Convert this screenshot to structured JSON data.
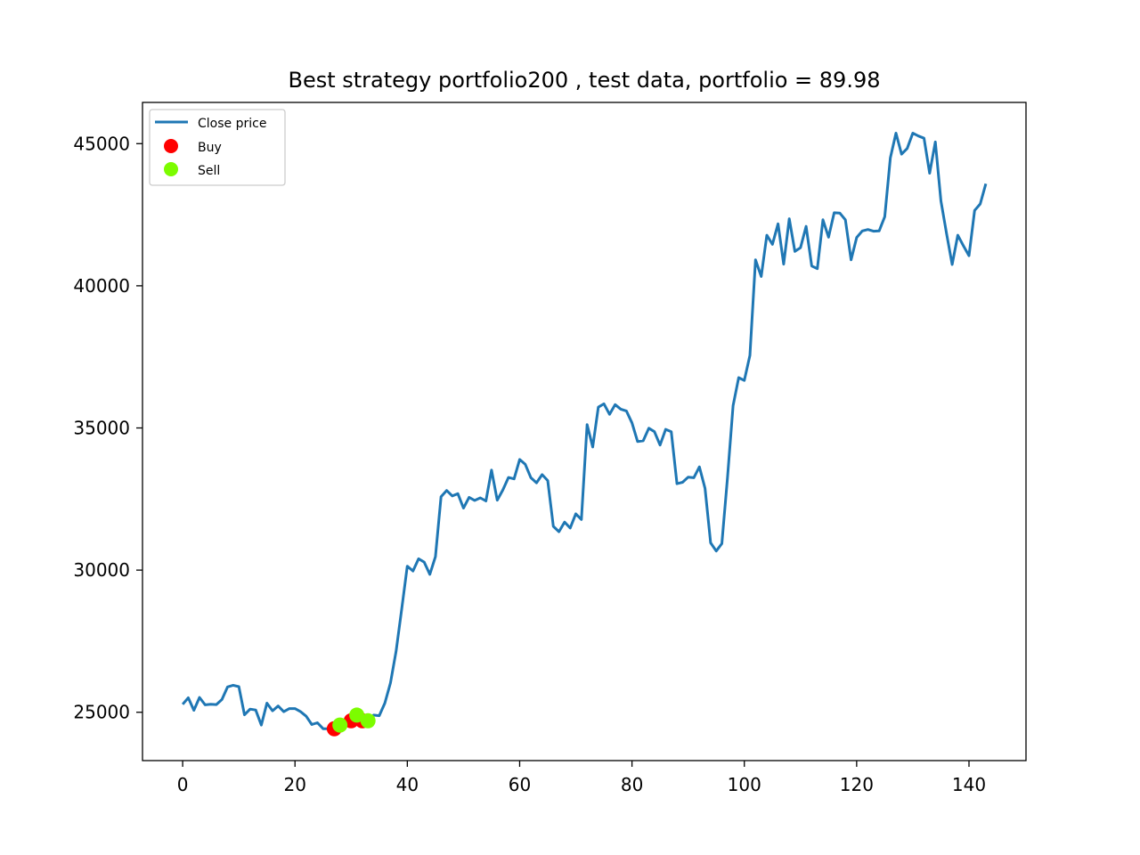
{
  "chart_data": {
    "type": "line",
    "title": "Best strategy portfolio200 , test data, portfolio = 89.98",
    "xlabel": "",
    "ylabel": "",
    "xlim": [
      -7.15,
      150.15
    ],
    "ylim": [
      23300,
      46450
    ],
    "x_ticks": [
      0,
      20,
      40,
      60,
      80,
      100,
      120,
      140
    ],
    "y_ticks": [
      25000,
      30000,
      35000,
      40000,
      45000
    ],
    "grid": false,
    "legend_position": "upper left",
    "series": [
      {
        "name": "Close price",
        "kind": "line",
        "color": "#1f77b4",
        "y": [
          25280,
          25510,
          25070,
          25520,
          25260,
          25280,
          25270,
          25450,
          25890,
          25950,
          25900,
          24910,
          25110,
          25080,
          24550,
          25320,
          25050,
          25220,
          25020,
          25130,
          25130,
          25020,
          24860,
          24570,
          24630,
          24420,
          24420,
          24380,
          24550,
          24700,
          24700,
          24870,
          24700,
          24700,
          24900,
          24880,
          25320,
          26030,
          27140,
          28620,
          30140,
          29970,
          30400,
          30280,
          29850,
          30470,
          32580,
          32800,
          32610,
          32690,
          32180,
          32560,
          32450,
          32540,
          32430,
          33520,
          32460,
          32820,
          33260,
          33210,
          33890,
          33720,
          33250,
          33070,
          33360,
          33150,
          31540,
          31350,
          31690,
          31480,
          31980,
          31780,
          35120,
          34330,
          35730,
          35850,
          35480,
          35820,
          35660,
          35600,
          35180,
          34520,
          34550,
          34990,
          34870,
          34400,
          34950,
          34870,
          33040,
          33090,
          33270,
          33250,
          33630,
          32880,
          30960,
          30670,
          30930,
          33240,
          35780,
          36770,
          36670,
          37550,
          40910,
          40330,
          41780,
          41460,
          42180,
          40760,
          42360,
          41210,
          41340,
          42090,
          40700,
          40600,
          42320,
          41710,
          42570,
          42560,
          42320,
          40910,
          41700,
          41930,
          41980,
          41920,
          41930,
          42430,
          44500,
          45370,
          44630,
          44830,
          45370,
          45270,
          45190,
          43960,
          45060,
          42980,
          41840,
          40750,
          41780,
          41410,
          41060,
          42650,
          42880,
          43590
        ]
      },
      {
        "name": "Buy",
        "kind": "scatter",
        "color": "#ff0000",
        "points": [
          [
            27,
            24420
          ],
          [
            30,
            24700
          ],
          [
            32,
            24700
          ]
        ]
      },
      {
        "name": "Sell",
        "kind": "scatter",
        "color": "#7cfc00",
        "points": [
          [
            28,
            24550
          ],
          [
            31,
            24900
          ],
          [
            33,
            24700
          ]
        ]
      }
    ]
  }
}
